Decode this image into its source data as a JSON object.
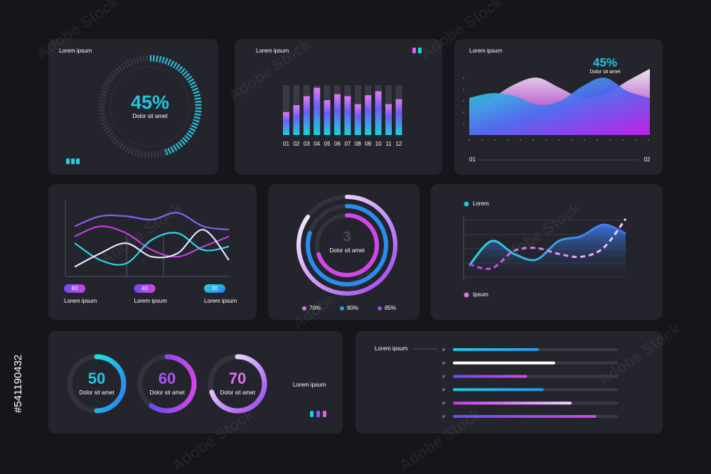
{
  "watermark": "Adobe Stock",
  "stock_id": "#541190432",
  "panels": {
    "gauge": {
      "title": "Lorem ipsum",
      "value": {
        "value": 45,
        "label": "45%"
      },
      "caption": "Dolor sit amet"
    },
    "bars": {
      "title": "Lorem ipsum",
      "categories": [
        "01",
        "02",
        "03",
        "04",
        "05",
        "06",
        "07",
        "08",
        "09",
        "10",
        "11",
        "12"
      ],
      "values": [
        46,
        60,
        78,
        95,
        70,
        82,
        78,
        62,
        80,
        88,
        62,
        72
      ],
      "ylim": [
        0,
        100
      ]
    },
    "area": {
      "title": "Lorem ipsum",
      "highlight": "45%",
      "caption": "Dolor sit amet",
      "series": [
        {
          "values": [
            40,
            55,
            75,
            85,
            70,
            55,
            60,
            80,
            98
          ]
        },
        {
          "values": [
            55,
            62,
            58,
            45,
            50,
            72,
            85,
            65,
            55
          ]
        }
      ],
      "ylim": [
        0,
        100
      ],
      "start_label": "01",
      "end_label": "02"
    },
    "lines": {
      "series": [
        {
          "color": "#8b5cf6",
          "values": [
            70,
            85,
            85,
            80,
            90,
            70,
            65
          ]
        },
        {
          "color": "#c13ee0",
          "values": [
            55,
            70,
            60,
            35,
            25,
            40,
            55
          ]
        },
        {
          "color": "#2dd4e8",
          "values": [
            45,
            20,
            15,
            50,
            60,
            35,
            40
          ]
        },
        {
          "color": "#e8e2ff",
          "values": [
            10,
            30,
            45,
            25,
            30,
            65,
            20
          ]
        }
      ],
      "ylim": [
        0,
        100
      ],
      "pills": [
        {
          "value": 80,
          "label": "Lorem ipsum"
        },
        {
          "value": 40,
          "label": "Lorem ipsum"
        },
        {
          "value": 30,
          "label": "Lorem ipsum"
        }
      ]
    },
    "rings": {
      "count": 3,
      "caption": "Dolor sit amet",
      "values": [
        {
          "value": 70,
          "label": "70%"
        },
        {
          "value": 80,
          "label": "80%"
        },
        {
          "value": 85,
          "label": "85%"
        }
      ]
    },
    "trend": {
      "series": [
        {
          "name": "Lorem",
          "values": [
            20,
            62,
            40,
            30,
            62,
            70,
            90,
            75
          ]
        },
        {
          "name": "Ipsum",
          "values": [
            22,
            15,
            45,
            50,
            40,
            35,
            50,
            100
          ]
        }
      ],
      "ylim": [
        0,
        100
      ]
    },
    "donuts": {
      "items": [
        {
          "value": 50,
          "caption": "Dolor sit amet"
        },
        {
          "value": 60,
          "caption": "Dolor sit amet"
        },
        {
          "value": 70,
          "caption": "Dolor sit amet"
        }
      ],
      "label": "Lorem ipsum"
    },
    "progress": {
      "title": "Lorem ipsum",
      "values": [
        52,
        62,
        45,
        55,
        72,
        87
      ],
      "xlim": [
        0,
        100
      ]
    }
  }
}
